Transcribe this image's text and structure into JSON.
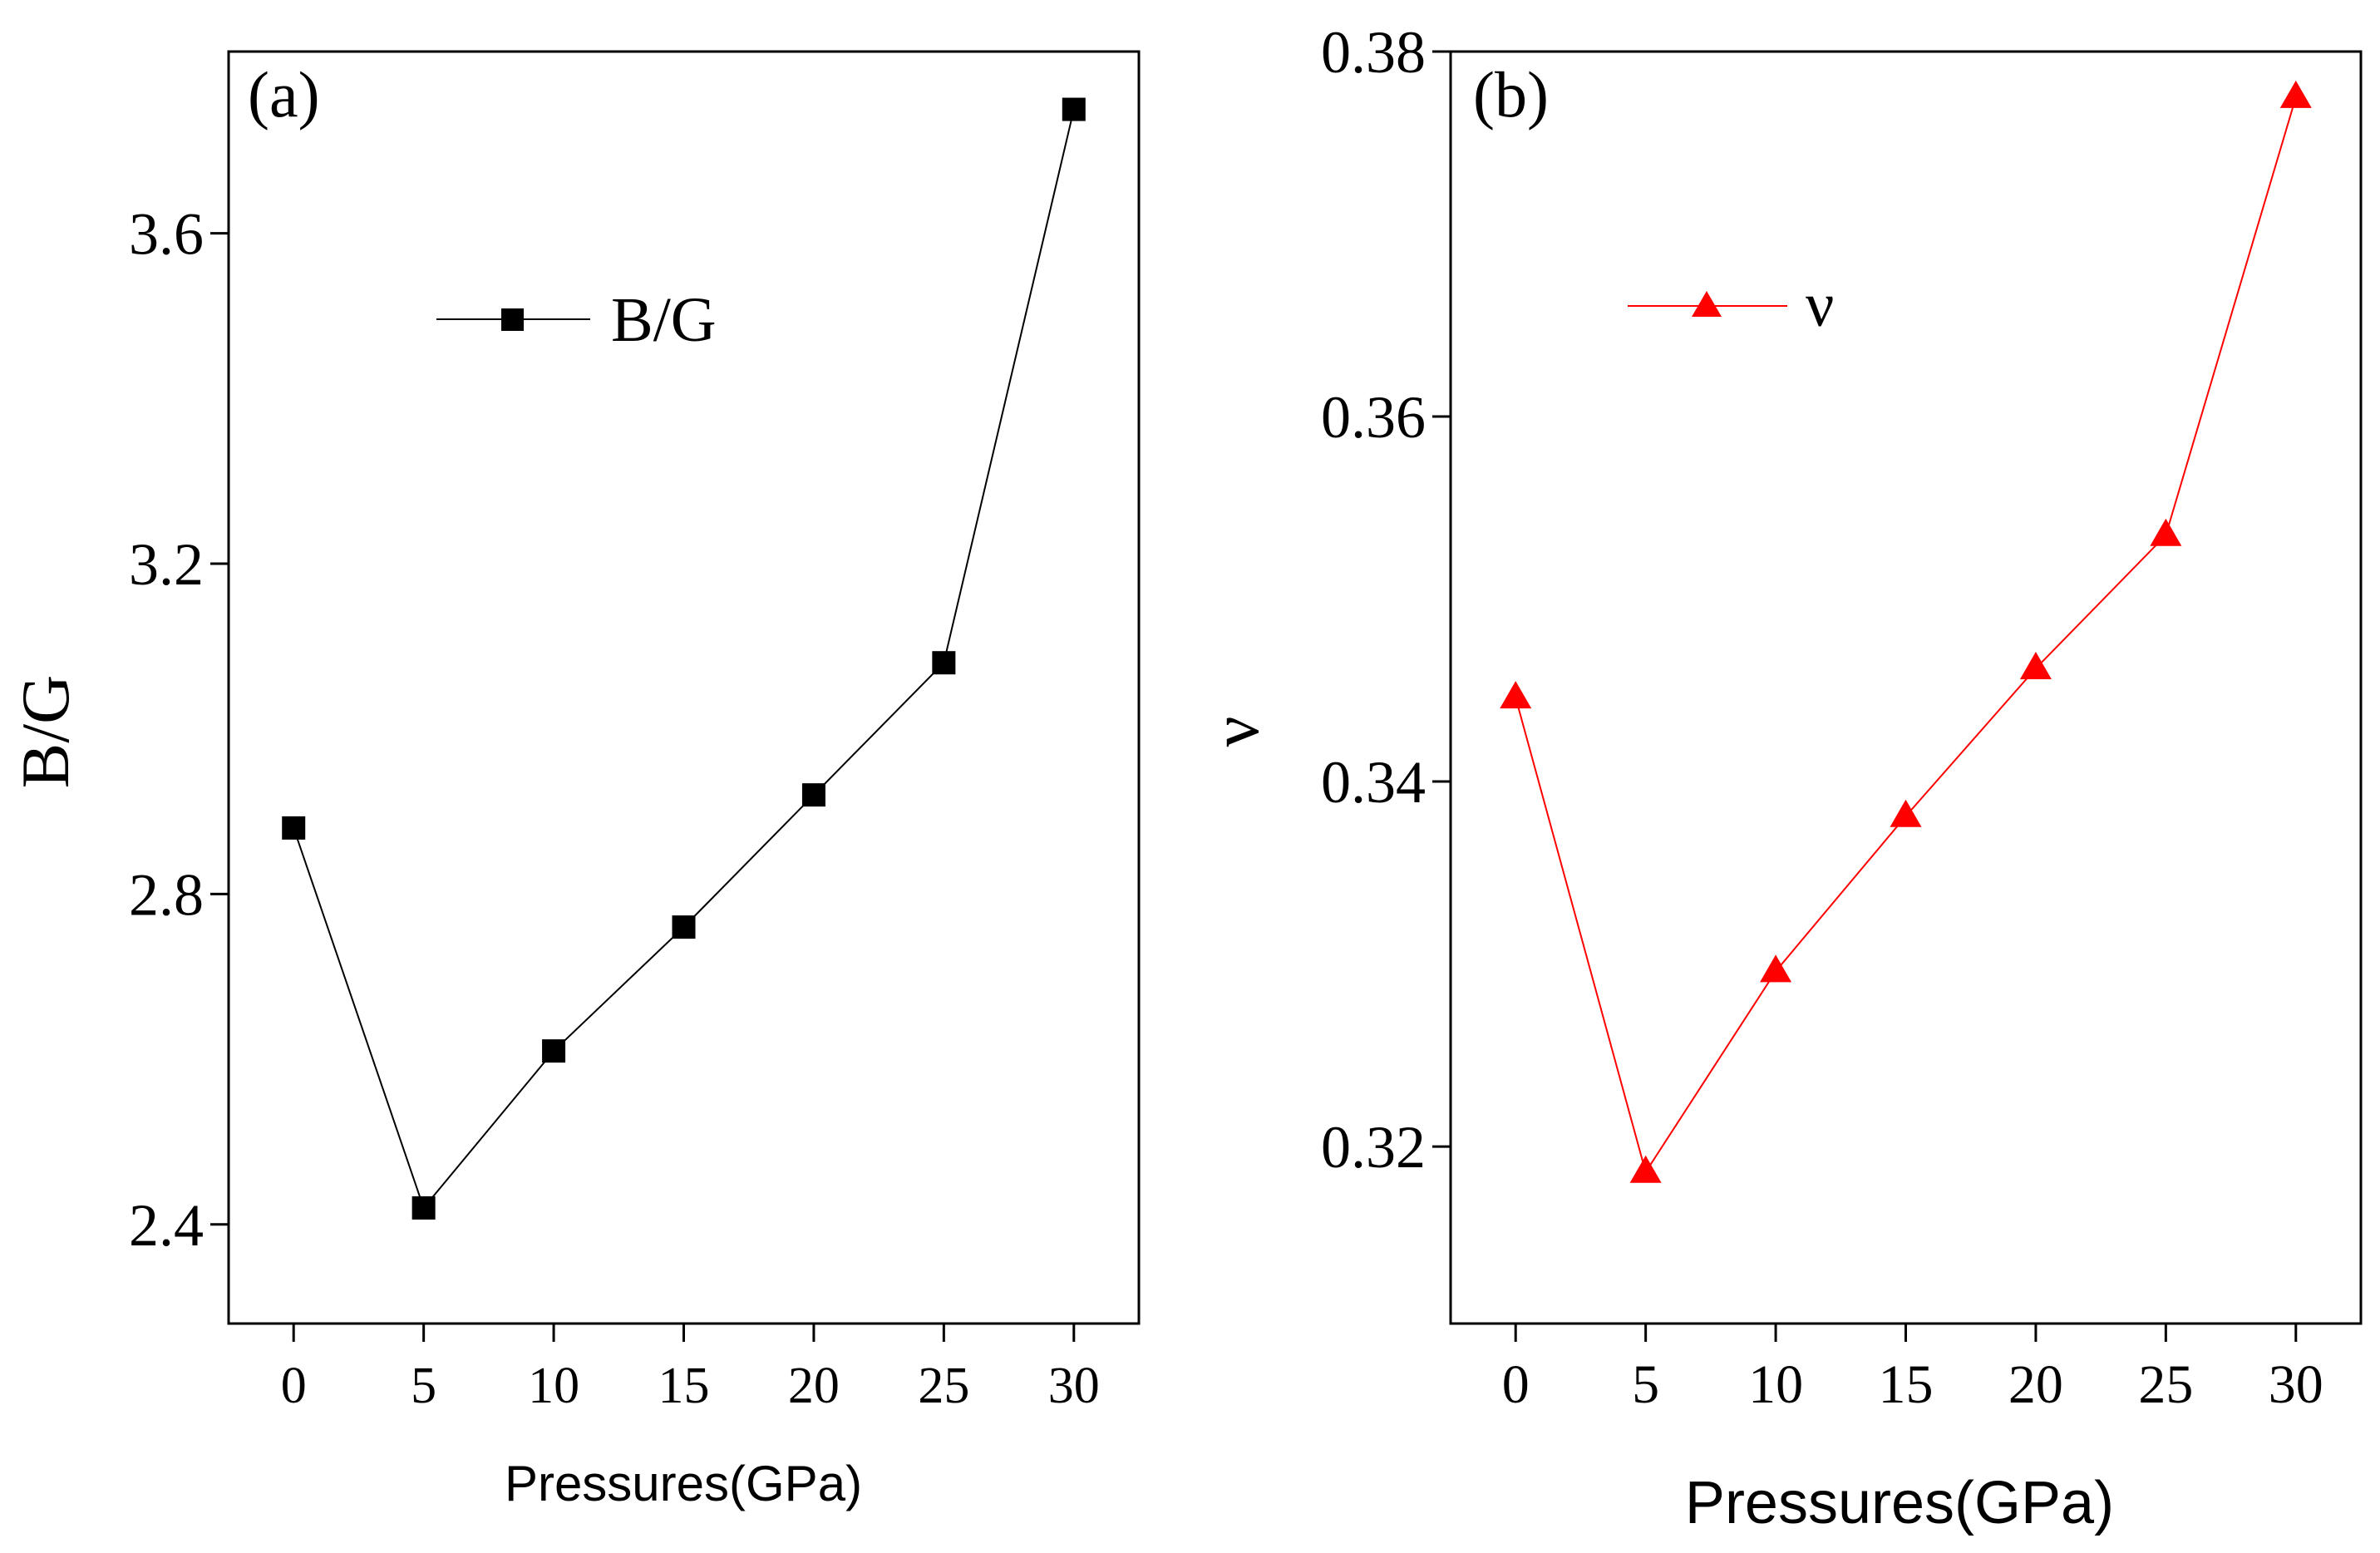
{
  "chart_data": [
    {
      "type": "line",
      "panel_label": "(a)",
      "xlabel": "Pressures(GPa)",
      "ylabel": "B/G",
      "xlim": [
        -2.5,
        32.5
      ],
      "ylim": [
        2.28,
        3.82
      ],
      "xticks": [
        0,
        5,
        10,
        15,
        20,
        25,
        30
      ],
      "xtick_labels": [
        "0",
        "5",
        "10",
        "15",
        "20",
        "25",
        "30"
      ],
      "yticks": [
        2.4,
        2.8,
        3.2,
        3.6
      ],
      "ytick_labels": [
        "2.4",
        "2.8",
        "3.2",
        "3.6"
      ],
      "grid": false,
      "legend_position": "upper-center",
      "series": [
        {
          "name": "B/G",
          "color": "#000000",
          "marker": "square",
          "x": [
            0,
            5,
            10,
            15,
            20,
            25,
            30
          ],
          "values": [
            2.88,
            2.42,
            2.61,
            2.76,
            2.92,
            3.08,
            3.75
          ]
        }
      ]
    },
    {
      "type": "line",
      "panel_label": "(b)",
      "xlabel": "Pressures(GPa)",
      "ylabel": "ν",
      "xlim": [
        -2.5,
        32.5
      ],
      "ylim": [
        0.3103,
        0.38
      ],
      "xticks": [
        0,
        5,
        10,
        15,
        20,
        25,
        30
      ],
      "xtick_labels": [
        "0",
        "5",
        "10",
        "15",
        "20",
        "25",
        "30"
      ],
      "yticks": [
        0.32,
        0.34,
        0.36,
        0.38
      ],
      "ytick_labels": [
        "0.32",
        "0.34",
        "0.36",
        "0.38"
      ],
      "grid": false,
      "legend_position": "upper-left",
      "series": [
        {
          "name": "ν",
          "color": "#ff0000",
          "marker": "triangle",
          "x": [
            0,
            5,
            10,
            15,
            20,
            25,
            30
          ],
          "values": [
            0.3446,
            0.3186,
            0.3296,
            0.3381,
            0.3462,
            0.3535,
            0.3775
          ]
        }
      ]
    }
  ]
}
